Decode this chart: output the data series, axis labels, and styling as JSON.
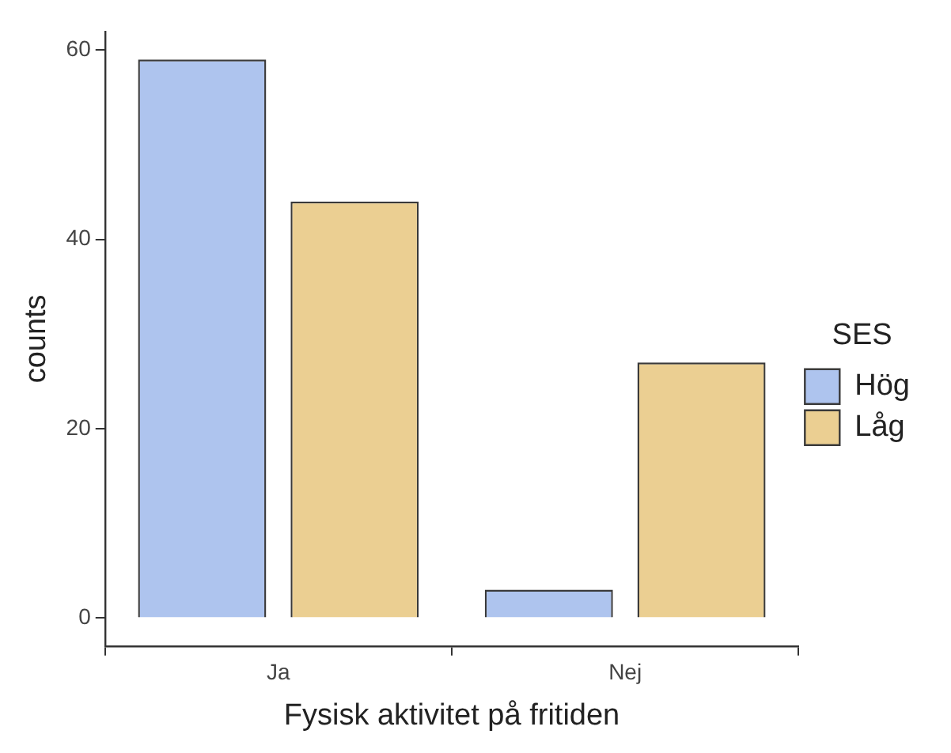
{
  "chart_data": {
    "type": "bar",
    "xlabel": "Fysisk aktivitet på fritiden",
    "ylabel": "counts",
    "legend_title": "SES",
    "categories": [
      "Ja",
      "Nej"
    ],
    "series": [
      {
        "name": "Hög",
        "color": "#aec4ee",
        "values": [
          59,
          3
        ]
      },
      {
        "name": "Låg",
        "color": "#ebcf92",
        "values": [
          44,
          27
        ]
      }
    ],
    "ylim": [
      -2.95,
      61.95
    ],
    "yticks": [
      0,
      20,
      40,
      60
    ],
    "grid": false,
    "legend": "right"
  }
}
